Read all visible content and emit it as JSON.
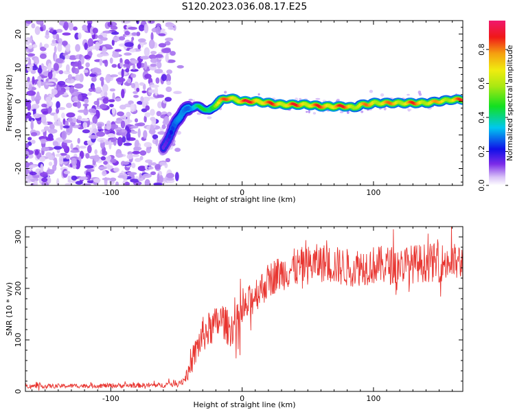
{
  "title": "S120.2023.036.08.17.E25",
  "chart_data": [
    {
      "type": "heatmap",
      "xlabel": "Height of straight line (km)",
      "ylabel": "Frequency (Hz)",
      "xlim": [
        -165,
        168
      ],
      "ylim": [
        -25,
        24
      ],
      "xticks": [
        -100,
        0,
        100
      ],
      "yticks": [
        -20,
        -10,
        0,
        10,
        20
      ],
      "colorbar": {
        "label": "Normalized spectral amplitude",
        "range": [
          0,
          0.97
        ],
        "ticks": [
          0.0,
          0.2,
          0.4,
          0.6,
          0.8
        ]
      },
      "noise_region_x": [
        -165,
        -53
      ],
      "ridge": {
        "x": [
          -60,
          -55,
          -50,
          -45,
          -40,
          -35,
          -30,
          -25,
          -20,
          -15,
          -10,
          -5,
          0,
          10,
          20,
          30,
          40,
          50,
          60,
          70,
          80,
          85,
          90,
          95,
          100,
          110,
          120,
          130,
          140,
          150,
          160,
          168
        ],
        "frequency_hz": [
          -14,
          -10,
          -6,
          -3,
          -2,
          -1.5,
          -2,
          -3,
          -1,
          0.5,
          1,
          0.5,
          0,
          0,
          -0.5,
          -1,
          -1,
          -1,
          -1.5,
          -1.5,
          -1.5,
          -2,
          -1,
          -1,
          -0.5,
          -0.5,
          -0.5,
          -0.5,
          -0.5,
          0,
          0.5,
          0.5
        ],
        "amplitude": [
          0.2,
          0.25,
          0.3,
          0.35,
          0.4,
          0.45,
          0.5,
          0.55,
          0.8,
          0.85,
          0.9,
          0.9,
          0.95,
          0.95,
          0.9,
          0.9,
          0.92,
          0.9,
          0.9,
          0.95,
          0.9,
          0.85,
          0.8,
          0.85,
          0.85,
          0.85,
          0.85,
          0.9,
          0.85,
          0.8,
          0.85,
          0.9
        ]
      }
    },
    {
      "type": "line",
      "xlabel": "Height of straight line (km)",
      "ylabel": "SNR (10 * v/v)",
      "xlim": [
        -165,
        168
      ],
      "ylim": [
        0,
        320
      ],
      "xticks": [
        -100,
        0,
        100
      ],
      "yticks": [
        0,
        100,
        200,
        300
      ],
      "series": [
        {
          "color": "#e8342f",
          "x": [
            -165,
            -60,
            -45,
            -40,
            -35,
            -30,
            -25,
            -20,
            -15,
            -10,
            -5,
            0,
            5,
            10,
            15,
            20,
            25,
            30,
            40,
            50,
            60,
            70,
            80,
            100,
            120,
            140,
            168
          ],
          "y": [
            10,
            12,
            20,
            40,
            80,
            110,
            120,
            130,
            140,
            120,
            130,
            150,
            170,
            190,
            200,
            215,
            225,
            230,
            240,
            245,
            250,
            245,
            240,
            245,
            245,
            250,
            250
          ],
          "noise_amplitude": [
            4,
            5,
            8,
            15,
            30,
            35,
            35,
            35,
            35,
            35,
            35,
            35,
            35,
            35,
            35,
            35,
            35,
            35,
            38,
            38,
            38,
            38,
            38,
            38,
            38,
            38,
            38
          ]
        }
      ]
    }
  ]
}
